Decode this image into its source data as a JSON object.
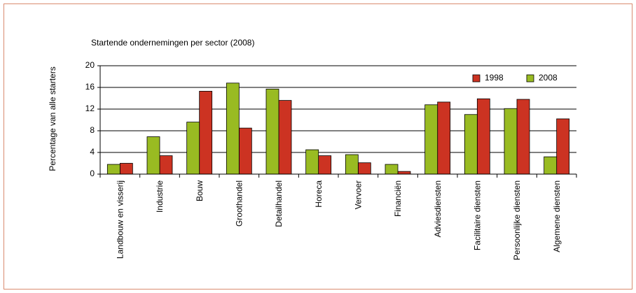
{
  "chart_data": {
    "type": "bar",
    "title": "Startende ondernemingen per sector (2008)",
    "y_label": "Percentage van alle starters",
    "categories": [
      "Landbouw en visserij",
      "Industrie",
      "Bouw",
      "Groothandel",
      "Detailhandel",
      "Horeca",
      "Vervoer",
      "Financiën",
      "Adviesdiensten",
      "Facilitaire diensten",
      "Persoonlijke diensten",
      "Algemene diensten"
    ],
    "series": [
      {
        "name": "1998",
        "color": "#cc3322",
        "values": [
          2.0,
          3.4,
          15.3,
          8.5,
          13.6,
          3.4,
          2.1,
          0.5,
          13.3,
          13.9,
          13.8,
          10.2
        ]
      },
      {
        "name": "2008",
        "color": "#99bb22",
        "values": [
          1.8,
          6.9,
          9.6,
          16.8,
          15.7,
          4.5,
          3.6,
          1.8,
          12.8,
          11.0,
          12.1,
          3.2
        ]
      }
    ],
    "ylim": [
      0,
      20
    ],
    "yticks": [
      0,
      4,
      8,
      12,
      16,
      20
    ],
    "grid": true,
    "legend": "top-right"
  }
}
